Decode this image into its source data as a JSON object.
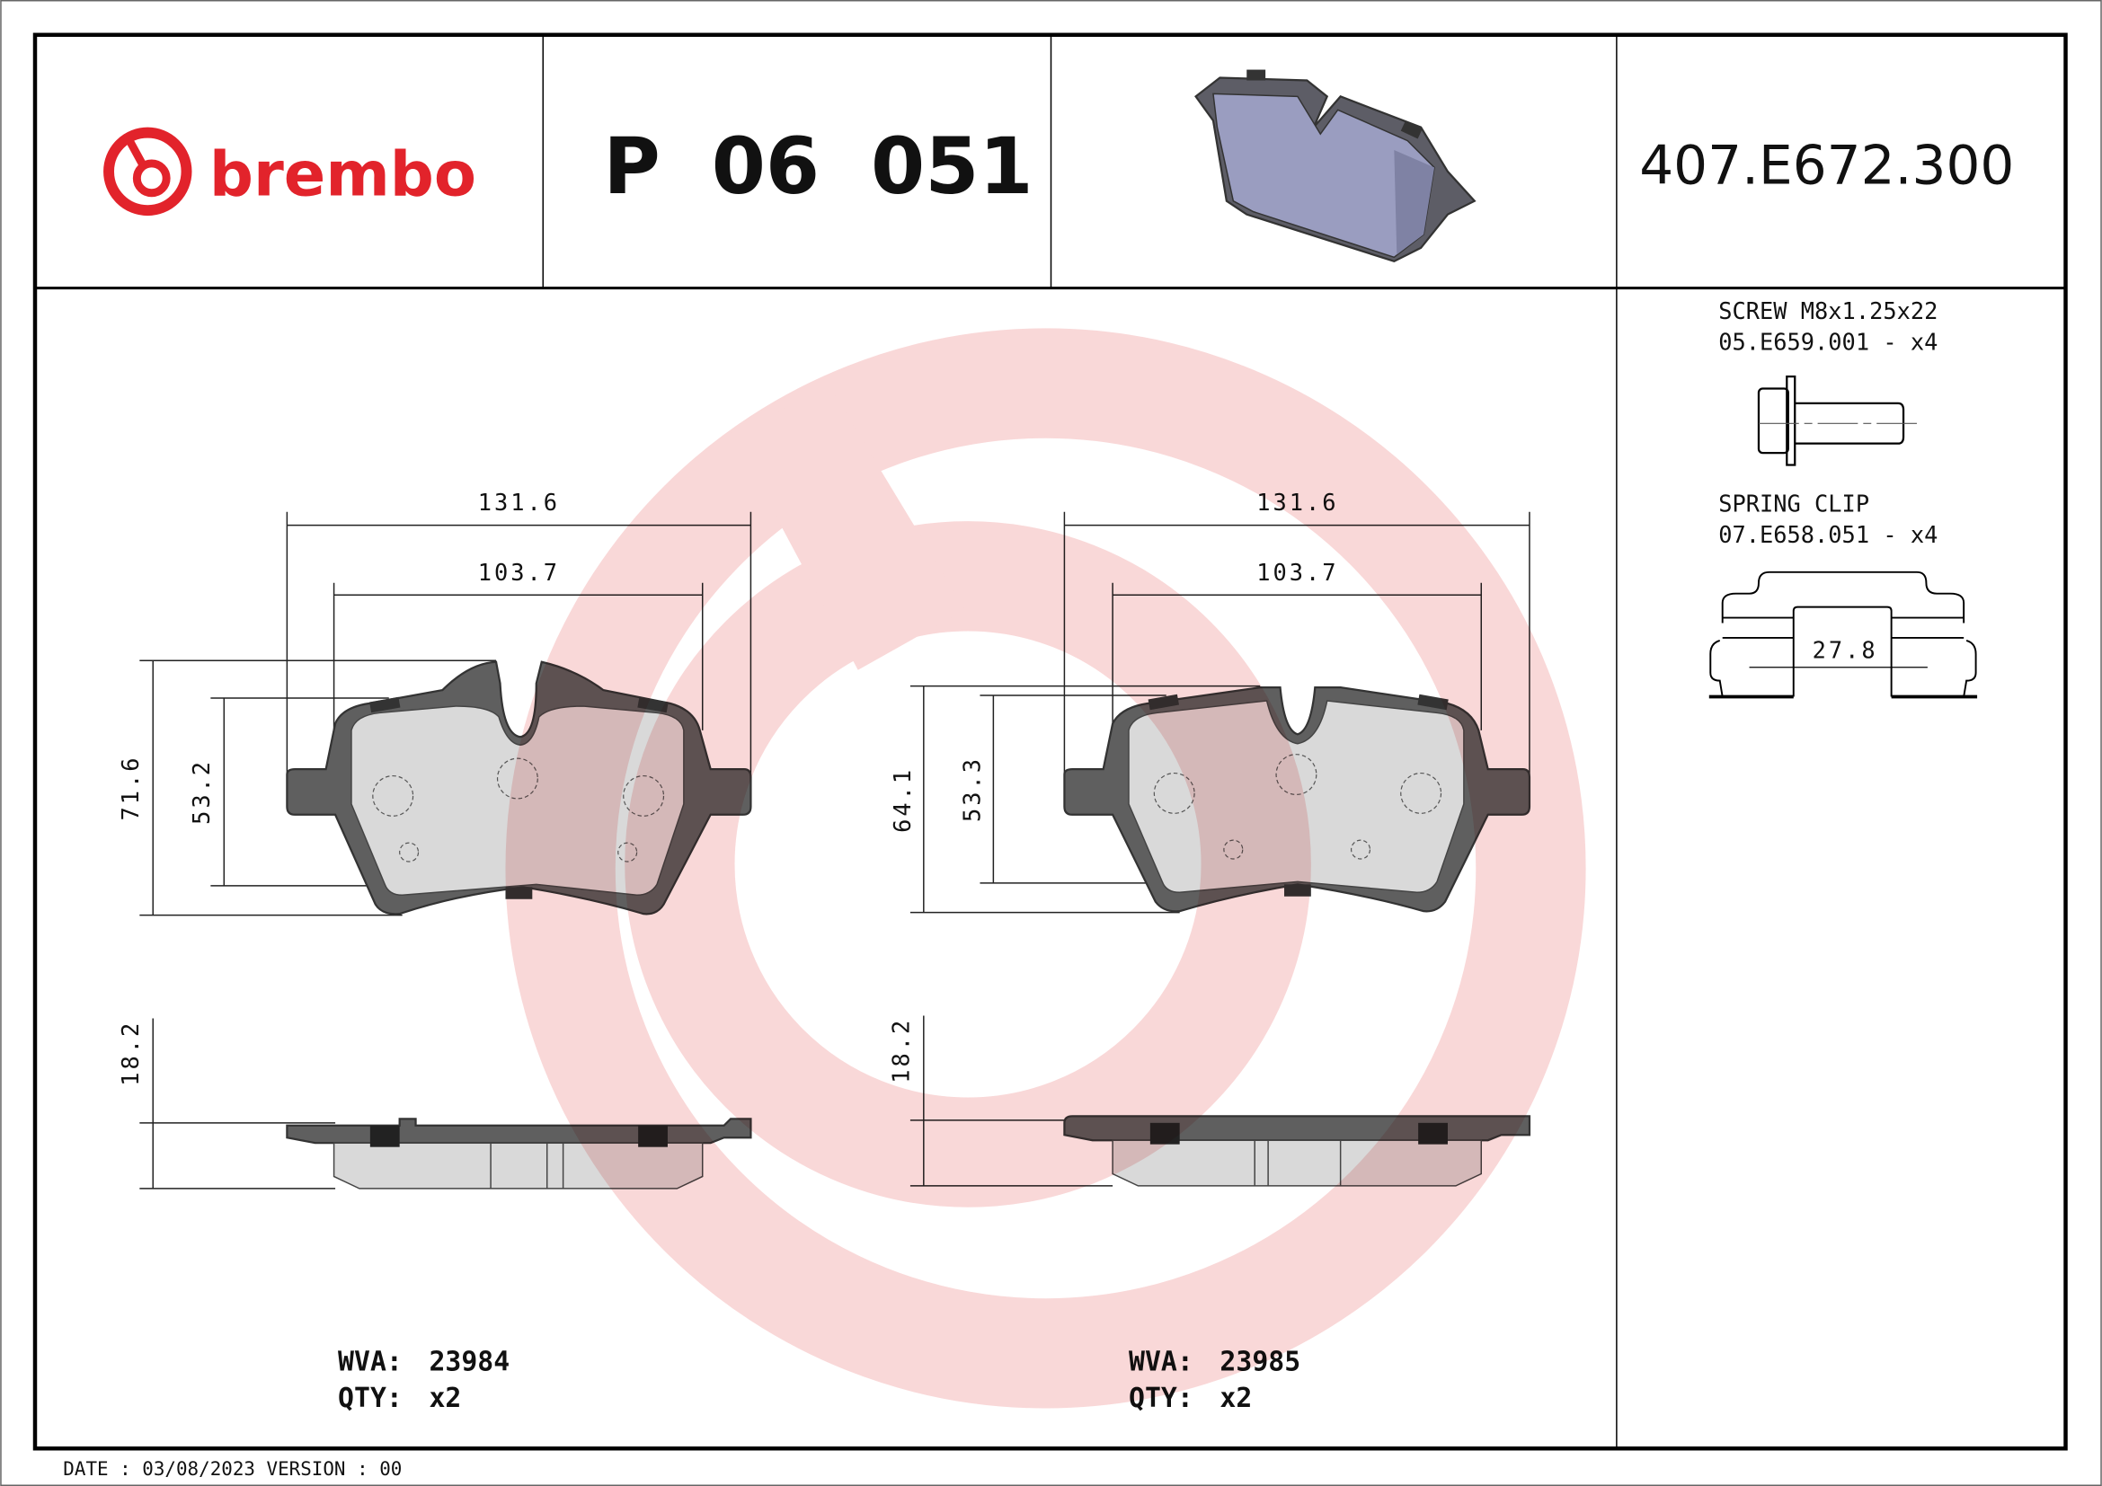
{
  "header": {
    "brand": "brembo",
    "part_number": "P 06 051",
    "reference_code": "407.E672.300"
  },
  "drawings": [
    {
      "width_overall": "131.6",
      "width_friction": "103.7",
      "height_overall": "71.6",
      "height_friction": "53.2",
      "thickness": "18.2",
      "wva_label": "WVA:",
      "wva_value": "23984",
      "qty_label": "QTY:",
      "qty_value": "x2"
    },
    {
      "width_overall": "131.6",
      "width_friction": "103.7",
      "height_overall": "64.1",
      "height_friction": "53.3",
      "thickness": "18.2",
      "wva_label": "WVA:",
      "wva_value": "23985",
      "qty_label": "QTY:",
      "qty_value": "x2"
    }
  ],
  "accessories": [
    {
      "name": "SCREW M8x1.25x22",
      "code": "05.E659.001 - x4"
    },
    {
      "name": "SPRING CLIP",
      "code": "07.E658.051 - x4",
      "dimension": "27.8"
    }
  ],
  "footer": {
    "text": "DATE : 03/08/2023 VERSION : 00"
  },
  "colors": {
    "brand_red": "#e2232b",
    "watermark": "#f9d6d6",
    "pad_render": "#9a9dc0"
  }
}
